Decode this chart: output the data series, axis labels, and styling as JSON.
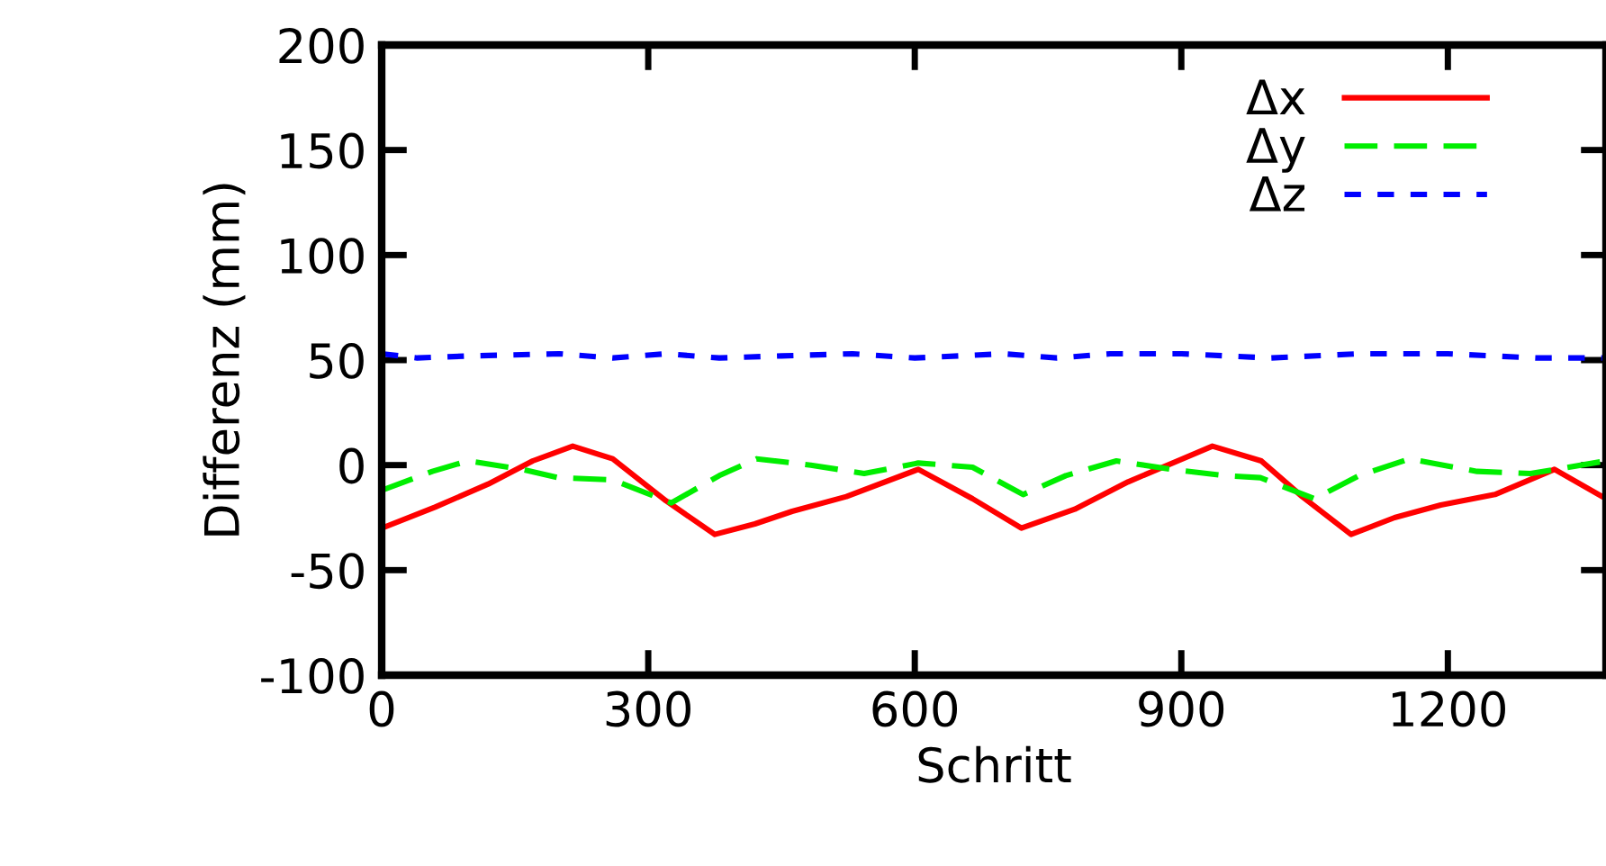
{
  "chart_data": {
    "type": "line",
    "xlabel": "Schritt",
    "ylabel": "Differenz (mm)",
    "xlim": [
      0,
      1378
    ],
    "ylim": [
      -100,
      200
    ],
    "xticks": [
      0,
      300,
      600,
      900,
      1200
    ],
    "yticks": [
      -100,
      -50,
      0,
      50,
      100,
      150,
      200
    ],
    "grid": false,
    "legend": "top right",
    "series": [
      {
        "name": "Δx",
        "color": "#ff0000",
        "line_style": "solid",
        "x": [
          0,
          60,
          120,
          170,
          215,
          260,
          320,
          375,
          420,
          462,
          523,
          604,
          665,
          720,
          780,
          840,
          935,
          990,
          1036,
          1091,
          1140,
          1192,
          1253,
          1320,
          1378
        ],
        "values": [
          -30,
          -20,
          -9,
          2,
          9,
          3,
          -17,
          -33,
          -28,
          -22,
          -15,
          -2,
          -16,
          -30,
          -21,
          -8,
          9,
          2,
          -15,
          -33,
          -25,
          -19,
          -14,
          -2,
          -16
        ]
      },
      {
        "name": "Δy",
        "color": "#00ee00",
        "line_style": "dashed",
        "x": [
          0,
          57,
          97,
          158,
          199,
          260,
          326,
          380,
          422,
          483,
          543,
          604,
          665,
          722,
          770,
          827,
          888,
          949,
          989,
          1050,
          1100,
          1157,
          1233,
          1293,
          1378
        ],
        "values": [
          -12,
          -3,
          2,
          -2,
          -6,
          -7,
          -18,
          -5,
          3,
          0,
          -4,
          1,
          -1,
          -14,
          -5,
          2,
          -2,
          -5,
          -6,
          -16,
          -5,
          3,
          -3,
          -4,
          2
        ]
      },
      {
        "name": "Δz",
        "color": "#0000ff",
        "line_style": "dotted",
        "x": [
          0,
          40,
          100,
          200,
          260,
          320,
          380,
          450,
          530,
          600,
          700,
          760,
          820,
          900,
          1000,
          1100,
          1200,
          1300,
          1378
        ],
        "values": [
          53,
          51,
          52,
          53,
          51,
          53,
          51,
          52,
          53,
          51,
          53,
          51,
          53,
          53,
          51,
          53,
          53,
          51,
          51
        ]
      }
    ]
  }
}
